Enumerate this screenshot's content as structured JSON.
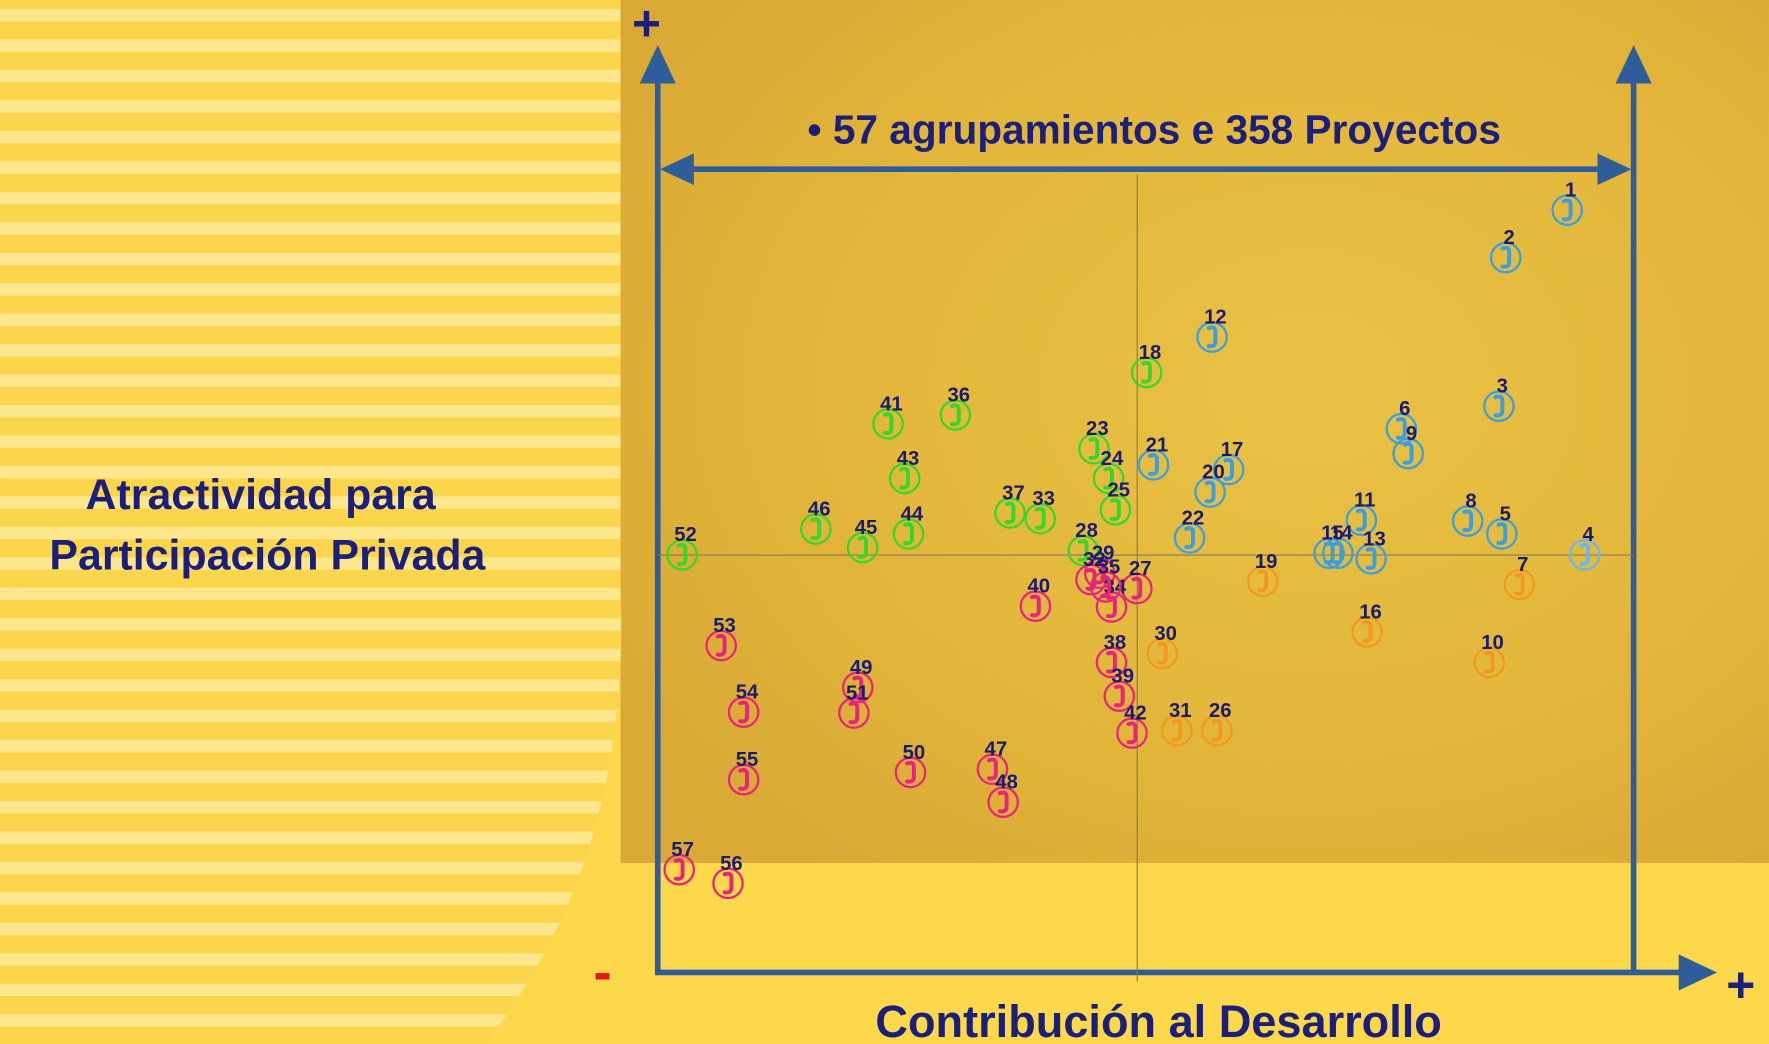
{
  "chart_data": {
    "type": "scatter",
    "title": "• 57 agrupamientos e 358 Proyectos",
    "x_label": "Contribución al Desarrollo",
    "y_label": [
      "Atractividad para",
      "Participación Privada"
    ],
    "axis_markers": {
      "y_end": "+",
      "origin": "-",
      "x_end": "+"
    },
    "xlim": [
      0,
      100
    ],
    "ylim": [
      0,
      100
    ],
    "labels": [
      "1",
      "2",
      "3",
      "4",
      "5",
      "6",
      "7",
      "8",
      "9",
      "10",
      "11",
      "12",
      "13",
      "14",
      "15",
      "16",
      "17",
      "18",
      "19",
      "20",
      "21",
      "22",
      "23",
      "24",
      "25",
      "26",
      "27",
      "28",
      "29",
      "30",
      "31",
      "32",
      "33",
      "34",
      "35",
      "36",
      "37",
      "38",
      "39",
      "40",
      "41",
      "42",
      "43",
      "44",
      "45",
      "46",
      "47",
      "48",
      "49",
      "50",
      "51",
      "52",
      "53",
      "54",
      "55",
      "56",
      "57"
    ],
    "x": [
      93.2,
      86.9,
      86.2,
      95.0,
      86.5,
      76.2,
      88.3,
      83.0,
      76.9,
      85.2,
      72.1,
      56.8,
      73.1,
      69.7,
      68.8,
      72.7,
      58.5,
      50.1,
      62.0,
      56.6,
      50.8,
      54.5,
      44.7,
      46.2,
      46.9,
      57.3,
      49.1,
      43.6,
      45.3,
      51.7,
      53.2,
      44.4,
      39.2,
      46.5,
      45.9,
      30.5,
      36.1,
      46.5,
      47.3,
      38.7,
      23.6,
      48.6,
      25.3,
      25.7,
      21.0,
      16.2,
      34.3,
      35.4,
      20.5,
      25.9,
      20.1,
      2.5,
      6.5,
      8.8,
      8.8,
      7.2,
      2.2
    ],
    "y": [
      94.9,
      89.0,
      70.5,
      52.0,
      54.6,
      67.7,
      48.3,
      56.2,
      64.6,
      38.6,
      56.3,
      79.1,
      51.5,
      52.2,
      52.2,
      42.4,
      62.6,
      74.7,
      48.7,
      59.8,
      63.2,
      54.1,
      65.2,
      61.5,
      57.6,
      30.1,
      47.8,
      52.5,
      49.7,
      39.7,
      30.1,
      48.9,
      56.5,
      45.5,
      48.0,
      69.4,
      57.2,
      38.6,
      34.4,
      45.6,
      68.3,
      29.8,
      61.5,
      54.6,
      52.9,
      55.2,
      25.3,
      21.2,
      35.5,
      24.9,
      32.3,
      52.0,
      40.7,
      32.4,
      24.0,
      11.1,
      12.8
    ],
    "colors": [
      "#3a9fe0",
      "#3a9fe0",
      "#3a9fe0",
      "#6ab8f0",
      "#3a9fe0",
      "#3a9fe0",
      "#f39a1c",
      "#3a9fe0",
      "#3a9fe0",
      "#f39a1c",
      "#3a9fe0",
      "#3a9fe0",
      "#3a9fe0",
      "#3a9fe0",
      "#3a9fe0",
      "#f39a1c",
      "#3a9fe0",
      "#35d82a",
      "#f39a1c",
      "#3a9fe0",
      "#3a9fe0",
      "#3a9fe0",
      "#35d82a",
      "#35d82a",
      "#35d82a",
      "#f39a1c",
      "#e8237e",
      "#35d82a",
      "#e8237e",
      "#f39a1c",
      "#f39a1c",
      "#e8237e",
      "#35d82a",
      "#e8237e",
      "#e8237e",
      "#35d82a",
      "#35d82a",
      "#e8237e",
      "#e8237e",
      "#e8237e",
      "#35d82a",
      "#e8237e",
      "#35d82a",
      "#35d82a",
      "#35d82a",
      "#35d82a",
      "#e8237e",
      "#e8237e",
      "#e8237e",
      "#e8237e",
      "#e8237e",
      "#35d82a",
      "#e8237e",
      "#e8237e",
      "#e8237e",
      "#e8237e",
      "#e8237e"
    ]
  }
}
